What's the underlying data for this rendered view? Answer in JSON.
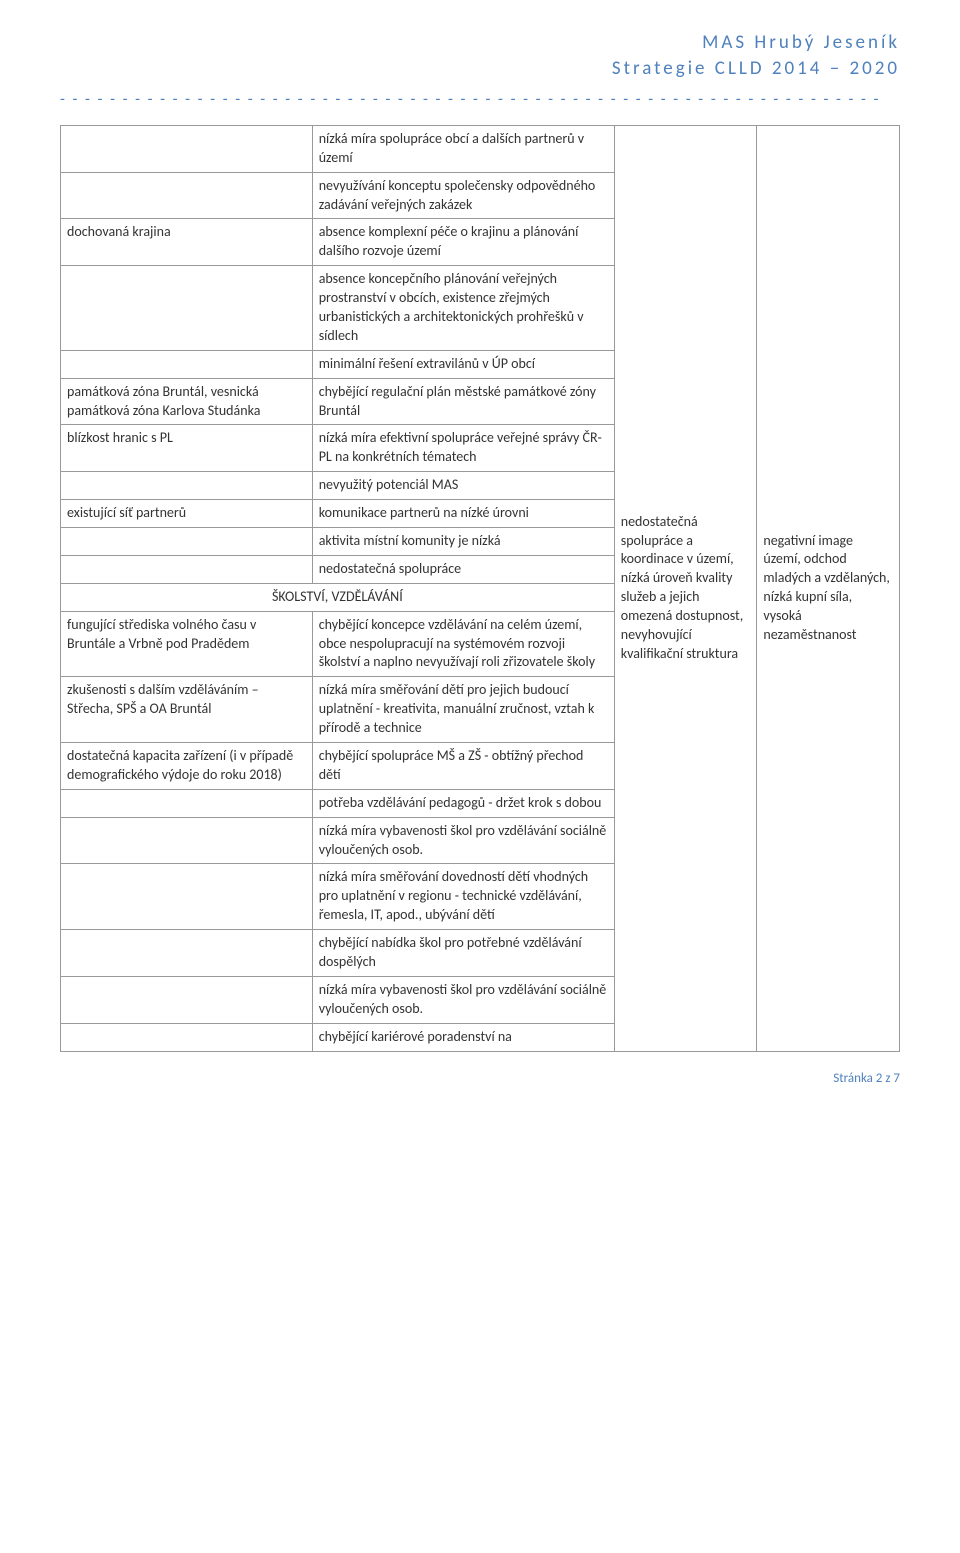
{
  "header": {
    "line1": "MAS Hrubý Jeseník",
    "line2": "Strategie CLLD 2014 – 2020",
    "dashes": "- - - - - - - - - - - - - - - - - - - - - - - - - - - - - - - - - - - - - - - - - - - - - - - - - - - - - - - - - - - - - - - - - -"
  },
  "rows": {
    "r1c2": "nízká míra spolupráce obcí a dalších partnerů v území",
    "r2c2": "nevyužívání konceptu společensky odpovědného zadávání veřejných zakázek",
    "r3c1": "dochovaná krajina",
    "r3c2": "absence komplexní péče o krajinu a plánování dalšího rozvoje území",
    "r4c2": "absence koncepčního plánování veřejných prostranství v obcích, existence zřejmých urbanistických a architektonických prohřešků v sídlech",
    "r5c2": "minimální řešení extravilánů v ÚP obcí",
    "r6c1": "památková zóna Bruntál, vesnická památková zóna Karlova Studánka",
    "r6c2": "chybějící regulační plán městské památkové zóny Bruntál",
    "r7c1": "blízkost hranic s PL",
    "r7c2": "nízká míra efektivní spolupráce veřejné správy ČR-PL na konkrétních tématech",
    "r8c2": "nevyužitý potenciál MAS",
    "r9c1": "existující síť partnerů",
    "r9c2": "komunikace partnerů na nízké úrovni",
    "r10c2": "aktivita místní komunity je nízká",
    "r11c2": "nedostatečná spolupráce",
    "section2": "ŠKOLSTVÍ, VZDĚLÁVÁNÍ",
    "s2r1c1": "fungující střediska volného času v Bruntále a Vrbně pod Pradědem",
    "s2r1c2": "chybějící koncepce vzdělávání na celém území, obce nespolupracují na systémovém rozvoji školství a naplno nevyužívají roli zřizovatele školy",
    "s2r2c1": "zkušenosti s dalším vzděláváním – Střecha, SPŠ a OA Bruntál",
    "s2r2c2": "nízká míra směřování dětí pro jejich budoucí uplatnění - kreativita, manuální zručnost, vztah k přírodě a technice",
    "s2r3c1": "dostatečná kapacita zařízení (i v případě demografického výdoje do roku 2018)",
    "s2r3c2": "chybějící spolupráce MŠ a ZŠ - obtížný přechod dětí",
    "s2r4c2": "potřeba vzdělávání pedagogů - držet krok s dobou",
    "s2r5c2": "nízká míra vybavenosti škol pro vzdělávání sociálně vyloučených osob.",
    "s2r6c2": "nízká míra směřování dovedností dětí vhodných pro uplatnění v regionu - technické vzdělávání, řemesla, IT, apod., ubývání dětí",
    "s2r7c2": "chybějící nabídka škol pro potřebné vzdělávání dospělých",
    "s2r8c2": "nízká míra vybavenosti škol pro vzdělávání sociálně vyloučených osob.",
    "s2r9c2": "chybějící kariérové poradenství na",
    "col3text": "nedostatečná spolupráce a koordinace v území, nízká úroveň kvality služeb a jejich omezená dostupnost, nevyhovující kvalifikační struktura",
    "col4text": "negativní image území, odchod mladých a vzdělaných, nízká kupní síla, vysoká nezaměstnanost"
  },
  "footer": {
    "page": "Stránka 2 z 7"
  },
  "styling": {
    "accent_color": "#4f81bd",
    "border_color": "#999999",
    "text_color": "#333333",
    "background_color": "#ffffff",
    "body_font_size": 14,
    "header_font_size": 19,
    "header_letter_spacing": 3,
    "col_widths": [
      "30%",
      "36%",
      "17%",
      "17%"
    ]
  }
}
